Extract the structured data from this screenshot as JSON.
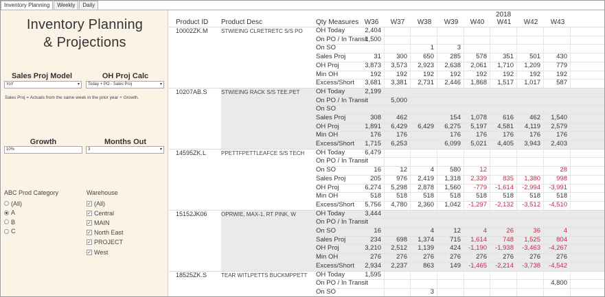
{
  "tabs": [
    {
      "label": "Inventory Planning",
      "active": true
    },
    {
      "label": "Weekly",
      "active": false
    },
    {
      "label": "Daily",
      "active": false
    }
  ],
  "panel": {
    "title_line1": "Inventory Planning",
    "title_line2": "& Projections",
    "sales_proj_model": {
      "label": "Sales Proj Model",
      "value": "YoY"
    },
    "oh_proj_calc": {
      "label": "OH Proj Calc",
      "value": "Today + PO - Sales Proj"
    },
    "note": "Sales Proj = Actuals from the same week in the prior year + Growth.",
    "growth": {
      "label": "Growth",
      "value": "10%"
    },
    "months_out": {
      "label": "Months Out",
      "value": "3"
    },
    "abc_category": {
      "label": "ABC Prod Category",
      "options": [
        {
          "label": "(All)",
          "selected": false
        },
        {
          "label": "A",
          "selected": true
        },
        {
          "label": "B",
          "selected": false
        },
        {
          "label": "C",
          "selected": false
        }
      ]
    },
    "warehouse": {
      "label": "Warehouse",
      "options": [
        {
          "label": "(All)",
          "checked": true
        },
        {
          "label": "Central",
          "checked": true
        },
        {
          "label": "MAIN",
          "checked": true
        },
        {
          "label": "North East",
          "checked": true
        },
        {
          "label": "PROJECT",
          "checked": true
        },
        {
          "label": "West",
          "checked": true
        }
      ]
    }
  },
  "table": {
    "year": "2018",
    "headers": {
      "product_id": "Product ID",
      "product_desc": "Product Desc",
      "measures": "Qty Measures"
    },
    "weeks": [
      "W36",
      "W37",
      "W38",
      "W39",
      "W40",
      "W41",
      "W42",
      "W43"
    ],
    "measure_names": [
      "OH Today",
      "On PO / In Transit",
      "On SO",
      "Sales Proj",
      "OH Proj",
      "Min OH",
      "Excess/Short"
    ],
    "products": [
      {
        "id": "10002ZK.M",
        "desc": "STWIEING CLRETRETC S/S PO",
        "rows": [
          [
            "2,404",
            "",
            "",
            "",
            "",
            "",
            "",
            ""
          ],
          [
            "1,500",
            "",
            "",
            "",
            "",
            "",
            "",
            ""
          ],
          [
            "",
            "",
            "1",
            "3",
            "",
            "",
            "",
            ""
          ],
          [
            "31",
            "300",
            "650",
            "285",
            "578",
            "351",
            "501",
            "430"
          ],
          [
            "3,873",
            "3,573",
            "2,923",
            "2,638",
            "2,061",
            "1,710",
            "1,209",
            "779"
          ],
          [
            "192",
            "192",
            "192",
            "192",
            "192",
            "192",
            "192",
            "192"
          ],
          [
            "3,681",
            "3,381",
            "2,731",
            "2,446",
            "1,868",
            "1,517",
            "1,017",
            "587"
          ]
        ]
      },
      {
        "id": "10207AB.S",
        "desc": "STWIEING RACK S/S TEE.PET",
        "rows": [
          [
            "2,199",
            "",
            "",
            "",
            "",
            "",
            "",
            ""
          ],
          [
            "",
            "5,000",
            "",
            "",
            "",
            "",
            "",
            ""
          ],
          [
            "",
            "",
            "",
            "",
            "",
            "",
            "",
            ""
          ],
          [
            "308",
            "462",
            "",
            "154",
            "1,078",
            "616",
            "462",
            "1,540"
          ],
          [
            "1,891",
            "6,429",
            "6,429",
            "6,275",
            "5,197",
            "4,581",
            "4,119",
            "2,579"
          ],
          [
            "176",
            "176",
            "",
            "176",
            "176",
            "176",
            "176",
            "176"
          ],
          [
            "1,715",
            "6,253",
            "",
            "6,099",
            "5,021",
            "4,405",
            "3,943",
            "2,403"
          ]
        ]
      },
      {
        "id": "14595ZK.L",
        "desc": "PPETTFPETTLEAFCE S/S TECH",
        "rows": [
          [
            "6,479",
            "",
            "",
            "",
            "",
            "",
            "",
            ""
          ],
          [
            "",
            "",
            "",
            "",
            "",
            "",
            "",
            ""
          ],
          [
            "16",
            "12",
            "4",
            "580",
            "12",
            "",
            "",
            "28"
          ],
          [
            "205",
            "976",
            "2,419",
            "1,318",
            "2,339",
            "835",
            "1,380",
            "998"
          ],
          [
            "6,274",
            "5,298",
            "2,878",
            "1,560",
            "-779",
            "-1,614",
            "-2,994",
            "-3,991"
          ],
          [
            "518",
            "518",
            "518",
            "518",
            "518",
            "518",
            "518",
            "518"
          ],
          [
            "5,756",
            "4,780",
            "2,360",
            "1,042",
            "-1,297",
            "-2,132",
            "-3,512",
            "-4,510"
          ]
        ]
      },
      {
        "id": "15152JK06",
        "desc": "OPRWIE, MAX-1, RT PINK, W",
        "rows": [
          [
            "3,444",
            "",
            "",
            "",
            "",
            "",
            "",
            ""
          ],
          [
            "",
            "",
            "",
            "",
            "",
            "",
            "",
            ""
          ],
          [
            "16",
            "",
            "4",
            "12",
            "4",
            "26",
            "36",
            "4"
          ],
          [
            "234",
            "698",
            "1,374",
            "715",
            "1,614",
            "748",
            "1,525",
            "804"
          ],
          [
            "3,210",
            "2,512",
            "1,139",
            "424",
            "-1,190",
            "-1,938",
            "-3,463",
            "-4,267"
          ],
          [
            "276",
            "276",
            "276",
            "276",
            "276",
            "276",
            "276",
            "276"
          ],
          [
            "2,934",
            "2,237",
            "863",
            "149",
            "-1,465",
            "-2,214",
            "-3,738",
            "-4,542"
          ]
        ]
      },
      {
        "id": "18525ZK.S",
        "desc": "TEAR WITLPETTS BUCKMPPETT",
        "rows": [
          [
            "1,595",
            "",
            "",
            "",
            "",
            "",
            "",
            ""
          ],
          [
            "",
            "",
            "",
            "",
            "",
            "",
            "",
            "4,800"
          ],
          [
            "",
            "",
            "3",
            "",
            "",
            "",
            "",
            ""
          ]
        ]
      }
    ],
    "red_weeks_start_index": 4,
    "red_products": [
      2,
      3
    ],
    "colors": {
      "negative": "#c0284a",
      "shaded": "#eaeaea",
      "panel": "#fbf3e6"
    }
  }
}
